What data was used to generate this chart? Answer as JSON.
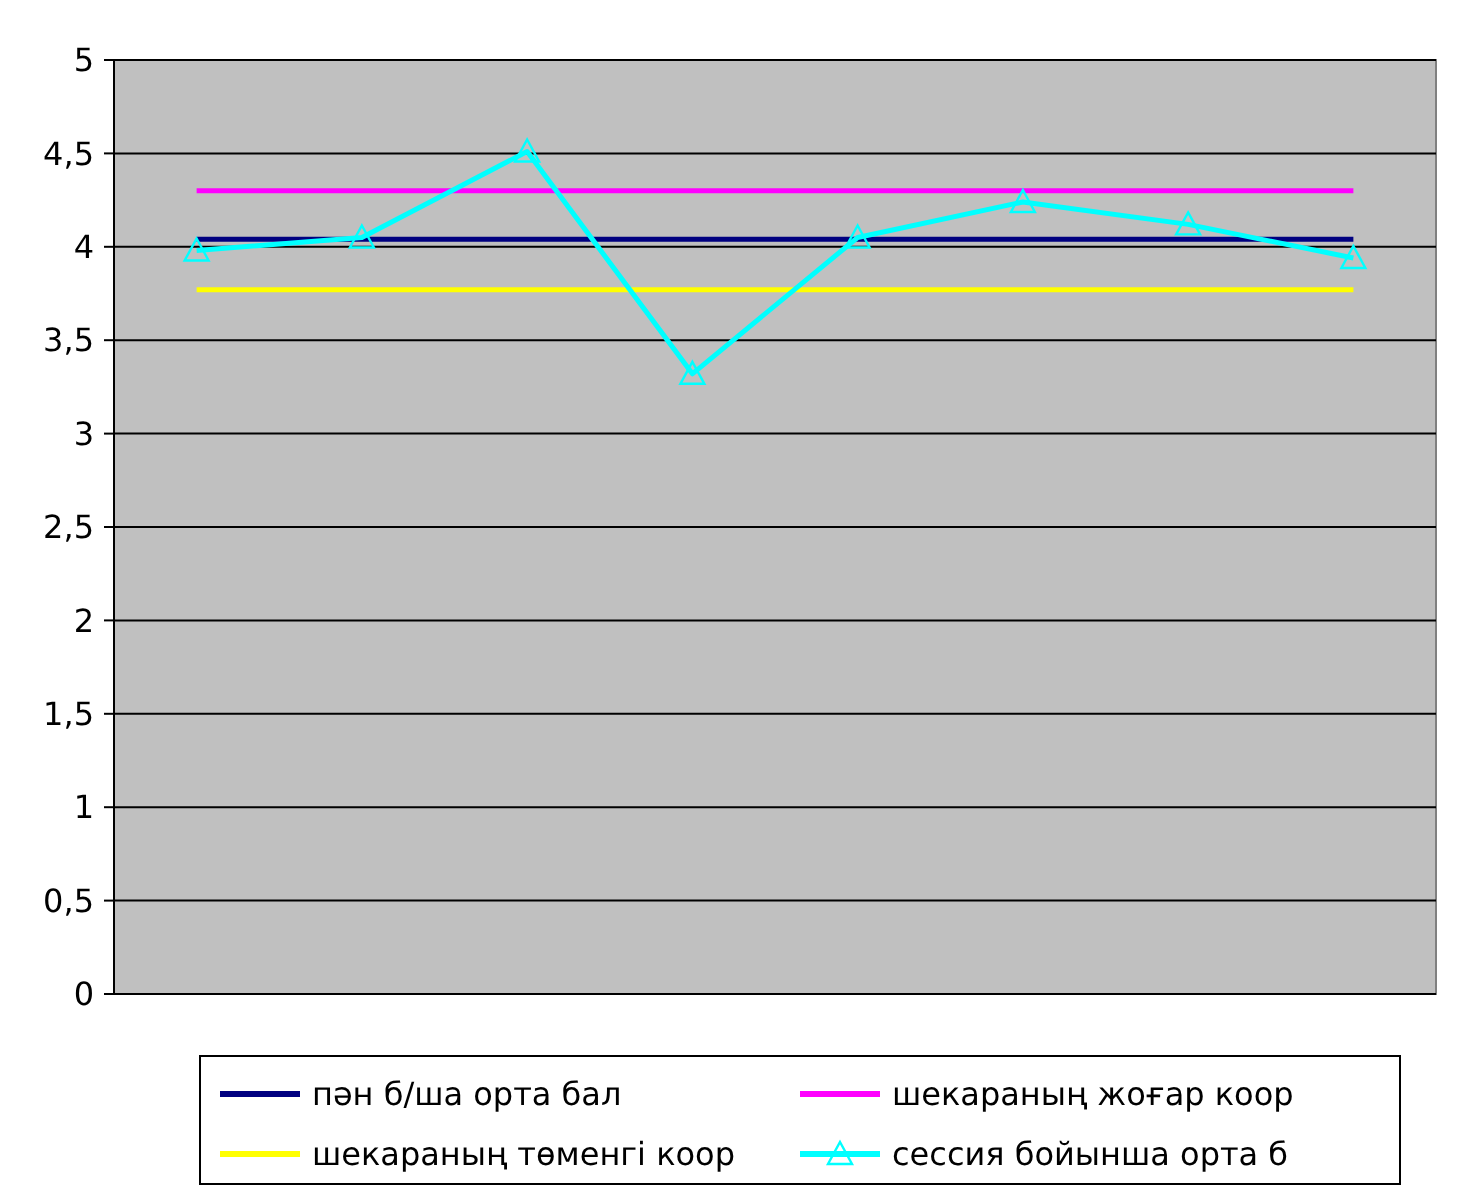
{
  "chart_data": {
    "type": "line",
    "categories": [
      null,
      null,
      null,
      null,
      null,
      null,
      null,
      null
    ],
    "ylim": [
      0,
      5
    ],
    "yticks": [
      0,
      {
        "value": 0.5,
        "label": "0,5"
      },
      1,
      {
        "value": 1.5,
        "label": "1,5"
      },
      2,
      {
        "value": 2.5,
        "label": "2,5"
      },
      3,
      {
        "value": 3.5,
        "label": "3,5"
      },
      4,
      {
        "value": 4.5,
        "label": "4,5"
      },
      5
    ],
    "grid": "y",
    "legend": "bottom",
    "series": [
      {
        "name": "пән б/ша орта бал",
        "color": "#000080",
        "marker": "none",
        "values": [
          4.04,
          4.04,
          4.04,
          4.04,
          4.04,
          4.04,
          4.04,
          4.04
        ]
      },
      {
        "name": "шекараның жоғар коор",
        "color": "#ff00ff",
        "marker": "none",
        "values": [
          4.3,
          4.3,
          4.3,
          4.3,
          4.3,
          4.3,
          4.3,
          4.3
        ]
      },
      {
        "name": "шекараның төменгі коор",
        "color": "#ffff00",
        "marker": "none",
        "values": [
          3.77,
          3.77,
          3.77,
          3.77,
          3.77,
          3.77,
          3.77,
          3.77
        ]
      },
      {
        "name": "сессия бойынша орта б",
        "color": "#00ffff",
        "marker": "triangle",
        "values": [
          3.98,
          4.05,
          4.51,
          3.32,
          4.05,
          4.24,
          4.12,
          3.94
        ]
      }
    ]
  }
}
